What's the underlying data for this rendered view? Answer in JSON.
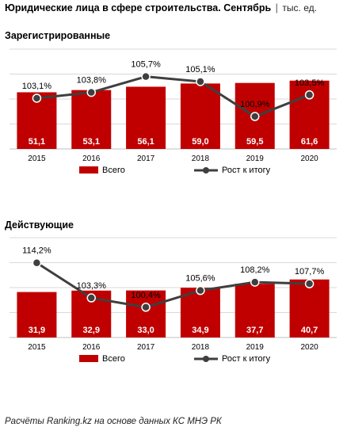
{
  "title": "Юридические лица в сфере строительства. Сентябрь",
  "unit": "тыс. ед.",
  "footer": "Расчёты Ranking.kz на основе данных КС МНЭ РК",
  "colors": {
    "bar": "#c00000",
    "line": "#3f3f3f",
    "grid": "#d9d9d9"
  },
  "legend": {
    "bar_label": "Всего",
    "line_label": "Рост к итогу"
  },
  "chart_data": [
    {
      "type": "bar",
      "title": "Зарегистрированные",
      "categories": [
        "2015",
        "2016",
        "2017",
        "2018",
        "2019",
        "2020"
      ],
      "series": [
        {
          "name": "Всего",
          "type": "bar",
          "values": [
            51.1,
            53.1,
            56.1,
            59.0,
            59.5,
            61.6
          ],
          "labels": [
            "51,1",
            "53,1",
            "56,1",
            "59,0",
            "59,5",
            "61,6"
          ]
        },
        {
          "name": "Рост к итогу",
          "type": "line",
          "values": [
            103.1,
            103.8,
            105.7,
            105.1,
            100.9,
            103.5
          ],
          "labels": [
            "103,1%",
            "103,8%",
            "105,7%",
            "105,1%",
            "100,9%",
            "103,5%"
          ]
        }
      ],
      "bar_ylim": [
        0,
        90
      ],
      "line_ylim": [
        97,
        109
      ],
      "grid": true,
      "legend_position": "bottom"
    },
    {
      "type": "bar",
      "title": "Действующие",
      "categories": [
        "2015",
        "2016",
        "2017",
        "2018",
        "2019",
        "2020"
      ],
      "series": [
        {
          "name": "Всего",
          "type": "bar",
          "values": [
            31.9,
            32.9,
            33.0,
            34.9,
            37.7,
            40.7
          ],
          "labels": [
            "31,9",
            "32,9",
            "33,0",
            "34,9",
            "37,7",
            "40,7"
          ]
        },
        {
          "name": "Рост к итогу",
          "type": "line",
          "values": [
            114.2,
            103.3,
            100.4,
            105.6,
            108.2,
            107.7
          ],
          "labels": [
            "114,2%",
            "103,3%",
            "100,4%",
            "105,6%",
            "108,2%",
            "107,7%"
          ]
        }
      ],
      "bar_ylim": [
        0,
        70
      ],
      "line_ylim": [
        91,
        122
      ],
      "grid": true,
      "legend_position": "bottom"
    }
  ]
}
